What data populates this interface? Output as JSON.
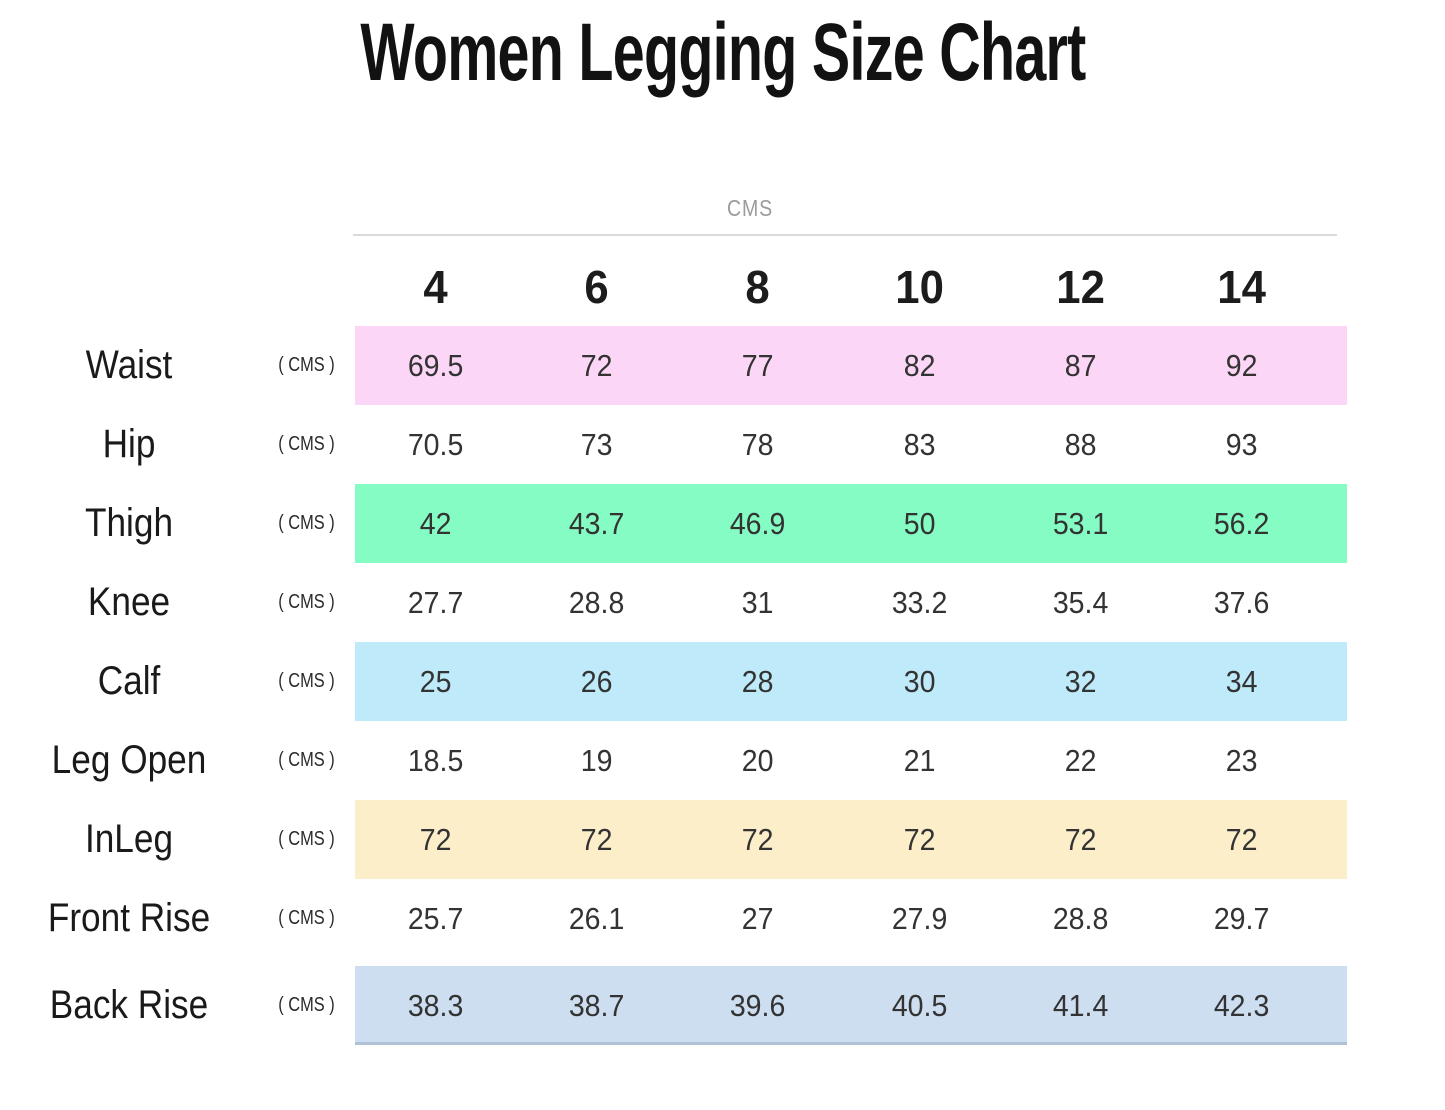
{
  "page": {
    "background": "#ffffff"
  },
  "chart_data": {
    "type": "table",
    "title": "Women Legging Size Chart",
    "unit_system_header": "CMS",
    "size_columns": [
      "4",
      "6",
      "8",
      "10",
      "12",
      "14"
    ],
    "rows": [
      {
        "label": "Waist",
        "unit": "( CMS )",
        "values": [
          "69.5",
          "72",
          "77",
          "82",
          "87",
          "92"
        ],
        "bg": "#fcd6f6"
      },
      {
        "label": "Hip",
        "unit": "( CMS )",
        "values": [
          "70.5",
          "73",
          "78",
          "83",
          "88",
          "93"
        ],
        "bg": null
      },
      {
        "label": "Thigh",
        "unit": "( CMS )",
        "values": [
          "42",
          "43.7",
          "46.9",
          "50",
          "53.1",
          "56.2"
        ],
        "bg": "#84fcc3"
      },
      {
        "label": "Knee",
        "unit": "( CMS )",
        "values": [
          "27.7",
          "28.8",
          "31",
          "33.2",
          "35.4",
          "37.6"
        ],
        "bg": null
      },
      {
        "label": "Calf",
        "unit": "( CMS )",
        "values": [
          "25",
          "26",
          "28",
          "30",
          "32",
          "34"
        ],
        "bg": "#beeafa"
      },
      {
        "label": "Leg Open",
        "unit": "( CMS )",
        "values": [
          "18.5",
          "19",
          "20",
          "21",
          "22",
          "23"
        ],
        "bg": null
      },
      {
        "label": "InLeg",
        "unit": "( CMS )",
        "values": [
          "72",
          "72",
          "72",
          "72",
          "72",
          "72"
        ],
        "bg": "#fdeeca"
      },
      {
        "label": "Front Rise",
        "unit": "( CMS )",
        "values": [
          "25.7",
          "26.1",
          "27",
          "27.9",
          "28.8",
          "29.7"
        ],
        "bg": null
      },
      {
        "label": "Back Rise",
        "unit": "( CMS )",
        "values": [
          "38.3",
          "38.7",
          "39.6",
          "40.5",
          "41.4",
          "42.3"
        ],
        "bg": "#cddef0"
      }
    ],
    "colors": {
      "waist_row": "#fcd6f6",
      "thigh_row": "#84fcc3",
      "calf_row": "#beeafa",
      "inleg_row": "#fdeeca",
      "back_rise_row": "#cddef0",
      "header_rule": "#dadada",
      "muted_header_text": "#9b9b9b",
      "text": "#1e1e1e"
    },
    "layout": {
      "grid": false,
      "legend": false
    }
  }
}
